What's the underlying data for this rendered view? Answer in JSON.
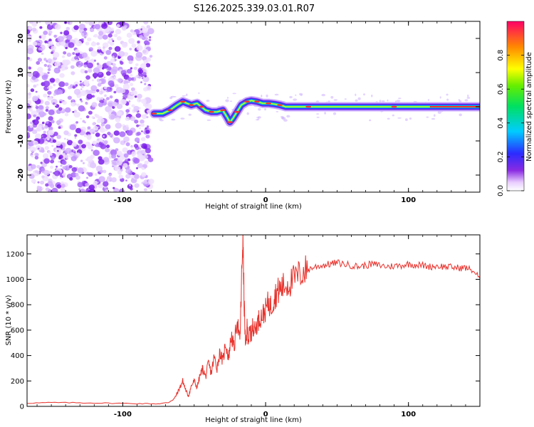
{
  "chart_data": [
    {
      "type": "heatmap",
      "title": "S126.2025.339.03.01.R07",
      "xlabel": "Height of straight line (km)",
      "ylabel": "Frequency (Hz)",
      "xlim": [
        -167,
        150
      ],
      "ylim": [
        -25,
        25
      ],
      "x_ticks": [
        -100,
        0,
        100
      ],
      "x_tick_labels": [
        "-100",
        "0",
        "100"
      ],
      "y_ticks": [
        -20,
        -10,
        0,
        10,
        20
      ],
      "y_tick_labels": [
        "-20",
        "-10",
        "0",
        "10",
        "20"
      ],
      "noise_region_x": [
        -167,
        -78
      ],
      "signal_trace": {
        "x": [
          -78,
          -72,
          -67,
          -62,
          -58,
          -55,
          -52,
          -48,
          -45,
          -42,
          -38,
          -34,
          -30,
          -27,
          -25,
          -23,
          -20,
          -17,
          -13,
          -10,
          -6,
          -2,
          2,
          6,
          10,
          14,
          30,
          60,
          90,
          120,
          150
        ],
        "freq": [
          -2,
          -2,
          -1,
          0.5,
          1.5,
          1,
          0.5,
          1,
          0,
          -1,
          -1.5,
          -1.5,
          -1,
          -3,
          -4.5,
          -3.5,
          -1.5,
          0.5,
          1.5,
          1.8,
          1.5,
          1,
          1,
          0.8,
          0.5,
          0,
          0,
          0,
          0,
          0,
          0
        ]
      },
      "colorbar": {
        "label": "Normalized spectral amplitude",
        "ticks": [
          0.0,
          0.2,
          0.4,
          0.6,
          0.8
        ],
        "tick_labels": [
          "0.0",
          "0.2",
          "0.4",
          "0.6",
          "0.8"
        ],
        "range": [
          0,
          1
        ]
      }
    },
    {
      "type": "line",
      "xlabel": "Height of straight line (km)",
      "ylabel": "SNR (10 * v/v)",
      "xlim": [
        -167,
        150
      ],
      "ylim": [
        0,
        1350
      ],
      "x_ticks": [
        -100,
        0,
        100
      ],
      "x_tick_labels": [
        "-100",
        "0",
        "100"
      ],
      "y_ticks": [
        0,
        200,
        400,
        600,
        800,
        1000,
        1200
      ],
      "y_tick_labels": [
        "0",
        "200",
        "400",
        "600",
        "800",
        "1000",
        "1200"
      ],
      "series": [
        {
          "name": "SNR",
          "color": "#e8302a",
          "x": [
            -167,
            -150,
            -130,
            -110,
            -90,
            -75,
            -68,
            -64,
            -62,
            -60,
            -58,
            -56,
            -54,
            -52,
            -50,
            -48,
            -46,
            -44,
            -42,
            -40,
            -38,
            -36,
            -34,
            -32,
            -30,
            -28,
            -26,
            -24,
            -22,
            -20,
            -18,
            -17,
            -16,
            -15,
            -14,
            -13,
            -12,
            -11,
            -10,
            -9,
            -8,
            -6,
            -4,
            -2,
            0,
            2,
            4,
            6,
            8,
            10,
            12,
            15,
            18,
            22,
            26,
            30,
            35,
            40,
            45,
            50,
            55,
            60,
            65,
            70,
            75,
            80,
            85,
            90,
            95,
            100,
            105,
            110,
            115,
            120,
            125,
            130,
            135,
            140,
            145,
            150
          ],
          "values": [
            25,
            30,
            28,
            25,
            22,
            20,
            30,
            60,
            100,
            150,
            200,
            130,
            80,
            160,
            200,
            150,
            240,
            300,
            230,
            340,
            260,
            390,
            300,
            430,
            350,
            500,
            380,
            560,
            450,
            700,
            500,
            900,
            1350,
            800,
            450,
            620,
            520,
            600,
            550,
            640,
            600,
            650,
            700,
            720,
            760,
            820,
            780,
            860,
            900,
            920,
            940,
            960,
            980,
            1020,
            1060,
            1080,
            1100,
            1110,
            1120,
            1130,
            1120,
            1110,
            1100,
            1110,
            1120,
            1110,
            1100,
            1105,
            1110,
            1120,
            1115,
            1110,
            1100,
            1105,
            1100,
            1095,
            1090,
            1090,
            1070,
            1010
          ]
        }
      ]
    }
  ]
}
